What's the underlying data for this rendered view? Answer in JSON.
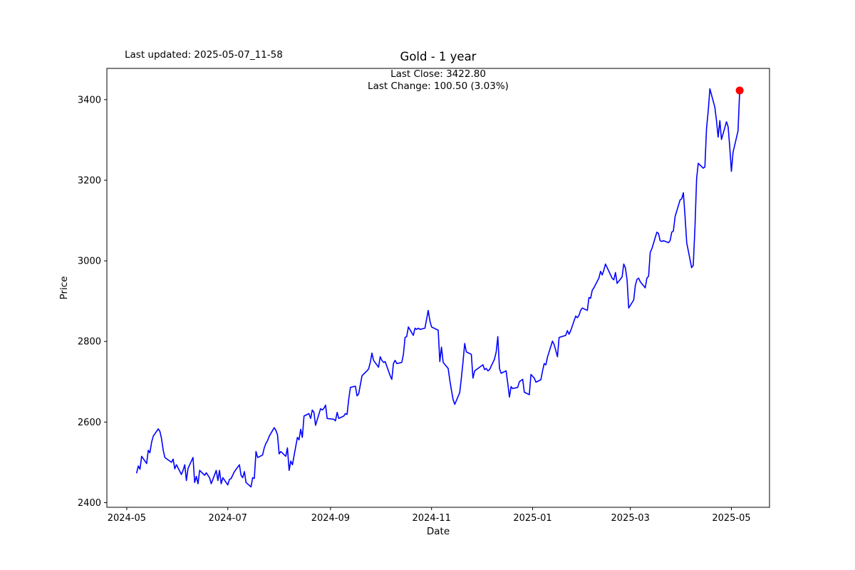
{
  "figure": {
    "last_updated": "Last updated: 2025-05-07_11-58",
    "title": "Gold - 1 year",
    "annotation_line1": "Last Close: 3422.80",
    "annotation_line2": "Last Change: 100.50 (3.03%)",
    "xlabel": "Date",
    "ylabel": "Price"
  },
  "chart_data": {
    "type": "line",
    "title": "Gold - 1 year",
    "xlabel": "Date",
    "ylabel": "Price",
    "legend": "none",
    "grid": false,
    "line_color": "#0000ff",
    "marker_color": "#ff0000",
    "last_close": 3422.8,
    "last_change": "100.50 (3.03%)",
    "ylim": [
      2388.5,
      3477.5
    ],
    "y_ticks": [
      2400,
      2600,
      2800,
      3000,
      3200,
      3400
    ],
    "xlim_dates": [
      "2024-04-19",
      "2025-05-24"
    ],
    "x_ticks": [
      {
        "date": "2024-05-01",
        "label": "2024-05"
      },
      {
        "date": "2024-07-01",
        "label": "2024-07"
      },
      {
        "date": "2024-09-01",
        "label": "2024-09"
      },
      {
        "date": "2024-11-01",
        "label": "2024-11"
      },
      {
        "date": "2025-01-01",
        "label": "2025-01"
      },
      {
        "date": "2025-03-01",
        "label": "2025-03"
      },
      {
        "date": "2025-05-01",
        "label": "2025-05"
      }
    ],
    "series": [
      {
        "name": "Gold",
        "points": [
          [
            "2024-05-07",
            2474
          ],
          [
            "2024-05-08",
            2491
          ],
          [
            "2024-05-09",
            2483
          ],
          [
            "2024-05-10",
            2515
          ],
          [
            "2024-05-13",
            2497
          ],
          [
            "2024-05-14",
            2530
          ],
          [
            "2024-05-15",
            2524
          ],
          [
            "2024-05-16",
            2550
          ],
          [
            "2024-05-17",
            2565
          ],
          [
            "2024-05-20",
            2583
          ],
          [
            "2024-05-21",
            2577
          ],
          [
            "2024-05-22",
            2559
          ],
          [
            "2024-05-23",
            2530
          ],
          [
            "2024-05-24",
            2512
          ],
          [
            "2024-05-28",
            2500
          ],
          [
            "2024-05-29",
            2508
          ],
          [
            "2024-05-30",
            2484
          ],
          [
            "2024-05-31",
            2494
          ],
          [
            "2024-06-03",
            2470
          ],
          [
            "2024-06-04",
            2480
          ],
          [
            "2024-06-05",
            2494
          ],
          [
            "2024-06-06",
            2455
          ],
          [
            "2024-06-07",
            2485
          ],
          [
            "2024-06-10",
            2512
          ],
          [
            "2024-06-11",
            2450
          ],
          [
            "2024-06-12",
            2465
          ],
          [
            "2024-06-13",
            2447
          ],
          [
            "2024-06-14",
            2480
          ],
          [
            "2024-06-17",
            2468
          ],
          [
            "2024-06-18",
            2474
          ],
          [
            "2024-06-20",
            2462
          ],
          [
            "2024-06-21",
            2447
          ],
          [
            "2024-06-24",
            2480
          ],
          [
            "2024-06-25",
            2455
          ],
          [
            "2024-06-26",
            2480
          ],
          [
            "2024-06-27",
            2447
          ],
          [
            "2024-06-28",
            2462
          ],
          [
            "2024-07-01",
            2444
          ],
          [
            "2024-07-02",
            2458
          ],
          [
            "2024-07-03",
            2460
          ],
          [
            "2024-07-05",
            2477
          ],
          [
            "2024-07-08",
            2494
          ],
          [
            "2024-07-09",
            2468
          ],
          [
            "2024-07-10",
            2462
          ],
          [
            "2024-07-11",
            2477
          ],
          [
            "2024-07-12",
            2450
          ],
          [
            "2024-07-15",
            2439
          ],
          [
            "2024-07-16",
            2462
          ],
          [
            "2024-07-17",
            2460
          ],
          [
            "2024-07-18",
            2527
          ],
          [
            "2024-07-19",
            2512
          ],
          [
            "2024-07-22",
            2518
          ],
          [
            "2024-07-23",
            2536
          ],
          [
            "2024-07-24",
            2547
          ],
          [
            "2024-07-25",
            2554
          ],
          [
            "2024-07-26",
            2565
          ],
          [
            "2024-07-29",
            2586
          ],
          [
            "2024-07-30",
            2580
          ],
          [
            "2024-07-31",
            2568
          ],
          [
            "2024-08-01",
            2521
          ],
          [
            "2024-08-02",
            2527
          ],
          [
            "2024-08-05",
            2515
          ],
          [
            "2024-08-06",
            2536
          ],
          [
            "2024-08-07",
            2480
          ],
          [
            "2024-08-08",
            2503
          ],
          [
            "2024-08-09",
            2494
          ],
          [
            "2024-08-12",
            2562
          ],
          [
            "2024-08-13",
            2556
          ],
          [
            "2024-08-14",
            2582
          ],
          [
            "2024-08-15",
            2562
          ],
          [
            "2024-08-16",
            2615
          ],
          [
            "2024-08-19",
            2621
          ],
          [
            "2024-08-20",
            2609
          ],
          [
            "2024-08-21",
            2630
          ],
          [
            "2024-08-22",
            2624
          ],
          [
            "2024-08-23",
            2592
          ],
          [
            "2024-08-26",
            2633
          ],
          [
            "2024-08-27",
            2630
          ],
          [
            "2024-08-28",
            2634
          ],
          [
            "2024-08-29",
            2642
          ],
          [
            "2024-08-30",
            2609
          ],
          [
            "2024-09-03",
            2607
          ],
          [
            "2024-09-04",
            2603
          ],
          [
            "2024-09-05",
            2624
          ],
          [
            "2024-09-06",
            2609
          ],
          [
            "2024-09-09",
            2615
          ],
          [
            "2024-09-10",
            2621
          ],
          [
            "2024-09-11",
            2619
          ],
          [
            "2024-09-12",
            2656
          ],
          [
            "2024-09-13",
            2686
          ],
          [
            "2024-09-16",
            2689
          ],
          [
            "2024-09-17",
            2665
          ],
          [
            "2024-09-18",
            2670
          ],
          [
            "2024-09-19",
            2692
          ],
          [
            "2024-09-20",
            2715
          ],
          [
            "2024-09-23",
            2727
          ],
          [
            "2024-09-24",
            2732
          ],
          [
            "2024-09-25",
            2748
          ],
          [
            "2024-09-26",
            2771
          ],
          [
            "2024-09-27",
            2753
          ],
          [
            "2024-09-30",
            2736
          ],
          [
            "2024-10-01",
            2762
          ],
          [
            "2024-10-02",
            2753
          ],
          [
            "2024-10-03",
            2748
          ],
          [
            "2024-10-04",
            2750
          ],
          [
            "2024-10-07",
            2715
          ],
          [
            "2024-10-08",
            2706
          ],
          [
            "2024-10-09",
            2745
          ],
          [
            "2024-10-10",
            2753
          ],
          [
            "2024-10-11",
            2745
          ],
          [
            "2024-10-14",
            2748
          ],
          [
            "2024-10-15",
            2768
          ],
          [
            "2024-10-16",
            2810
          ],
          [
            "2024-10-17",
            2812
          ],
          [
            "2024-10-18",
            2836
          ],
          [
            "2024-10-21",
            2815
          ],
          [
            "2024-10-22",
            2833
          ],
          [
            "2024-10-23",
            2830
          ],
          [
            "2024-10-24",
            2833
          ],
          [
            "2024-10-25",
            2830
          ],
          [
            "2024-10-28",
            2833
          ],
          [
            "2024-10-29",
            2855
          ],
          [
            "2024-10-30",
            2877
          ],
          [
            "2024-10-31",
            2851
          ],
          [
            "2024-11-01",
            2836
          ],
          [
            "2024-11-04",
            2830
          ],
          [
            "2024-11-05",
            2828
          ],
          [
            "2024-11-06",
            2750
          ],
          [
            "2024-11-07",
            2786
          ],
          [
            "2024-11-08",
            2748
          ],
          [
            "2024-11-11",
            2733
          ],
          [
            "2024-11-12",
            2704
          ],
          [
            "2024-11-13",
            2679
          ],
          [
            "2024-11-14",
            2656
          ],
          [
            "2024-11-15",
            2644
          ],
          [
            "2024-11-18",
            2673
          ],
          [
            "2024-11-19",
            2709
          ],
          [
            "2024-11-20",
            2750
          ],
          [
            "2024-11-21",
            2795
          ],
          [
            "2024-11-22",
            2774
          ],
          [
            "2024-11-25",
            2768
          ],
          [
            "2024-11-26",
            2709
          ],
          [
            "2024-11-27",
            2727
          ],
          [
            "2024-11-29",
            2733
          ],
          [
            "2024-12-02",
            2742
          ],
          [
            "2024-12-03",
            2730
          ],
          [
            "2024-12-04",
            2733
          ],
          [
            "2024-12-05",
            2727
          ],
          [
            "2024-12-06",
            2730
          ],
          [
            "2024-12-09",
            2756
          ],
          [
            "2024-12-10",
            2774
          ],
          [
            "2024-12-11",
            2812
          ],
          [
            "2024-12-12",
            2733
          ],
          [
            "2024-12-13",
            2721
          ],
          [
            "2024-12-16",
            2727
          ],
          [
            "2024-12-17",
            2697
          ],
          [
            "2024-12-18",
            2662
          ],
          [
            "2024-12-19",
            2688
          ],
          [
            "2024-12-20",
            2683
          ],
          [
            "2024-12-23",
            2686
          ],
          [
            "2024-12-24",
            2700
          ],
          [
            "2024-12-26",
            2706
          ],
          [
            "2024-12-27",
            2674
          ],
          [
            "2024-12-30",
            2668
          ],
          [
            "2024-12-31",
            2718
          ],
          [
            "2025-01-02",
            2709
          ],
          [
            "2025-01-03",
            2699
          ],
          [
            "2025-01-06",
            2705
          ],
          [
            "2025-01-07",
            2727
          ],
          [
            "2025-01-08",
            2745
          ],
          [
            "2025-01-09",
            2742
          ],
          [
            "2025-01-10",
            2762
          ],
          [
            "2025-01-13",
            2801
          ],
          [
            "2025-01-14",
            2792
          ],
          [
            "2025-01-15",
            2777
          ],
          [
            "2025-01-16",
            2762
          ],
          [
            "2025-01-17",
            2810
          ],
          [
            "2025-01-21",
            2815
          ],
          [
            "2025-01-22",
            2827
          ],
          [
            "2025-01-23",
            2818
          ],
          [
            "2025-01-24",
            2827
          ],
          [
            "2025-01-27",
            2863
          ],
          [
            "2025-01-28",
            2859
          ],
          [
            "2025-01-29",
            2865
          ],
          [
            "2025-01-30",
            2877
          ],
          [
            "2025-01-31",
            2883
          ],
          [
            "2025-02-03",
            2877
          ],
          [
            "2025-02-04",
            2909
          ],
          [
            "2025-02-05",
            2907
          ],
          [
            "2025-02-06",
            2927
          ],
          [
            "2025-02-07",
            2933
          ],
          [
            "2025-02-10",
            2957
          ],
          [
            "2025-02-11",
            2974
          ],
          [
            "2025-02-12",
            2965
          ],
          [
            "2025-02-13",
            2977
          ],
          [
            "2025-02-14",
            2992
          ],
          [
            "2025-02-18",
            2957
          ],
          [
            "2025-02-19",
            2953
          ],
          [
            "2025-02-20",
            2971
          ],
          [
            "2025-02-21",
            2944
          ],
          [
            "2025-02-24",
            2960
          ],
          [
            "2025-02-25",
            2992
          ],
          [
            "2025-02-26",
            2983
          ],
          [
            "2025-02-27",
            2953
          ],
          [
            "2025-02-28",
            2883
          ],
          [
            "2025-03-03",
            2903
          ],
          [
            "2025-03-04",
            2939
          ],
          [
            "2025-03-05",
            2954
          ],
          [
            "2025-03-06",
            2957
          ],
          [
            "2025-03-07",
            2948
          ],
          [
            "2025-03-10",
            2933
          ],
          [
            "2025-03-11",
            2957
          ],
          [
            "2025-03-12",
            2962
          ],
          [
            "2025-03-13",
            3021
          ],
          [
            "2025-03-14",
            3030
          ],
          [
            "2025-03-17",
            3071
          ],
          [
            "2025-03-18",
            3068
          ],
          [
            "2025-03-19",
            3050
          ],
          [
            "2025-03-20",
            3048
          ],
          [
            "2025-03-21",
            3050
          ],
          [
            "2025-03-24",
            3045
          ],
          [
            "2025-03-25",
            3050
          ],
          [
            "2025-03-26",
            3071
          ],
          [
            "2025-03-27",
            3074
          ],
          [
            "2025-03-28",
            3110
          ],
          [
            "2025-03-31",
            3151
          ],
          [
            "2025-04-01",
            3154
          ],
          [
            "2025-04-02",
            3169
          ],
          [
            "2025-04-03",
            3112
          ],
          [
            "2025-04-04",
            3045
          ],
          [
            "2025-04-07",
            2983
          ],
          [
            "2025-04-08",
            2989
          ],
          [
            "2025-04-09",
            3084
          ],
          [
            "2025-04-10",
            3204
          ],
          [
            "2025-04-11",
            3242
          ],
          [
            "2025-04-14",
            3230
          ],
          [
            "2025-04-15",
            3233
          ],
          [
            "2025-04-16",
            3328
          ],
          [
            "2025-04-17",
            3372
          ],
          [
            "2025-04-18",
            3427
          ],
          [
            "2025-04-21",
            3381
          ],
          [
            "2025-04-22",
            3348
          ],
          [
            "2025-04-23",
            3307
          ],
          [
            "2025-04-24",
            3348
          ],
          [
            "2025-04-25",
            3301
          ],
          [
            "2025-04-28",
            3345
          ],
          [
            "2025-04-29",
            3333
          ],
          [
            "2025-04-30",
            3283
          ],
          [
            "2025-05-01",
            3222
          ],
          [
            "2025-05-02",
            3269
          ],
          [
            "2025-05-05",
            3322.3
          ],
          [
            "2025-05-06",
            3422.8
          ]
        ]
      }
    ]
  }
}
